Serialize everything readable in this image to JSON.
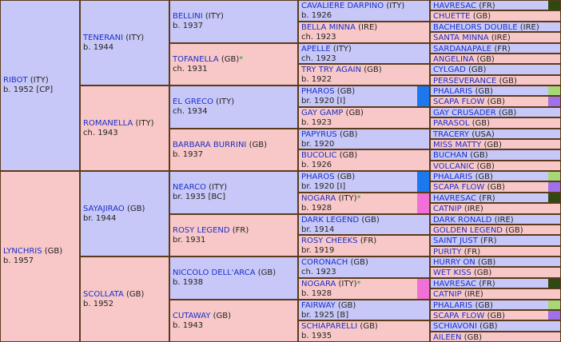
{
  "colors": {
    "male_bg": "#c8c8f8",
    "female_bg": "#f8c8c8",
    "border": "#5a3a1a",
    "link": "#1a2fc8",
    "star": "#2a9a2a",
    "tag_darkgreen": "#2e4a12",
    "tag_lightgreen": "#a6d878",
    "tag_purple": "#a070e8",
    "tag_blue": "#1c78ee",
    "tag_pink": "#f070d8"
  },
  "pedigree": {
    "g1": [
      {
        "name": "RIBOT",
        "country": "(ITY)",
        "info": "b. 1952 [CP]"
      },
      {
        "name": "LYNCHRIS",
        "country": "(GB)",
        "info": "b. 1957"
      }
    ],
    "g2": [
      {
        "name": "TENERANI",
        "country": "(ITY)",
        "info": "b. 1944"
      },
      {
        "name": "ROMANELLA",
        "country": "(ITY)",
        "info": "ch. 1943"
      },
      {
        "name": "SAYAJIRAO",
        "country": "(GB)",
        "info": "br. 1944"
      },
      {
        "name": "SCOLLATA",
        "country": "(GB)",
        "info": "b. 1952"
      }
    ],
    "g3": [
      {
        "name": "BELLINI",
        "country": "(ITY)",
        "info": "b. 1937"
      },
      {
        "name": "TOFANELLA",
        "country": "(GB)",
        "star": "*",
        "info": "ch. 1931"
      },
      {
        "name": "EL GRECO",
        "country": "(ITY)",
        "info": "ch. 1934"
      },
      {
        "name": "BARBARA BURRINI",
        "country": "(GB)",
        "info": "b. 1937"
      },
      {
        "name": "NEARCO",
        "country": "(ITY)",
        "info": "br. 1935 [BC]"
      },
      {
        "name": "ROSY LEGEND",
        "country": "(FR)",
        "info": "br. 1931"
      },
      {
        "name": "NICCOLO DELL'ARCA",
        "country": "(GB)",
        "info": "b. 1938"
      },
      {
        "name": "CUTAWAY",
        "country": "(GB)",
        "info": "b. 1943"
      }
    ],
    "g4": [
      {
        "name": "CAVALIERE DARPINO",
        "country": "(ITY)",
        "info": "b. 1926"
      },
      {
        "name": "BELLA MINNA",
        "country": "(IRE)",
        "info": "ch. 1923"
      },
      {
        "name": "APELLE",
        "country": "(ITY)",
        "info": "ch. 1923"
      },
      {
        "name": "TRY TRY AGAIN",
        "country": "(GB)",
        "info": "b. 1922"
      },
      {
        "name": "PHAROS",
        "country": "(GB)",
        "info": "br. 1920 [I]"
      },
      {
        "name": "GAY GAMP",
        "country": "(GB)",
        "info": "b. 1923"
      },
      {
        "name": "PAPYRUS",
        "country": "(GB)",
        "info": "br. 1920"
      },
      {
        "name": "BUCOLIC",
        "country": "(GB)",
        "info": "b. 1926"
      },
      {
        "name": "PHAROS",
        "country": "(GB)",
        "info": "br. 1920 [I]"
      },
      {
        "name": "NOGARA",
        "country": "(ITY)",
        "star": "*",
        "info": "b. 1928"
      },
      {
        "name": "DARK LEGEND",
        "country": "(GB)",
        "info": "br. 1914"
      },
      {
        "name": "ROSY CHEEKS",
        "country": "(FR)",
        "info": "br. 1919"
      },
      {
        "name": "CORONACH",
        "country": "(GB)",
        "info": "ch. 1923"
      },
      {
        "name": "NOGARA",
        "country": "(ITY)",
        "star": "*",
        "info": "b. 1928"
      },
      {
        "name": "FAIRWAY",
        "country": "(GB)",
        "info": "br. 1925 [B]"
      },
      {
        "name": "SCHIAPARELLI",
        "country": "(GB)",
        "info": "b. 1935"
      }
    ],
    "g5": [
      {
        "name": "HAVRESAC",
        "country": "(FR)"
      },
      {
        "name": "CHUETTE",
        "country": "(GB)"
      },
      {
        "name": "BACHELORS DOUBLE",
        "country": "(IRE)"
      },
      {
        "name": "SANTA MINNA",
        "country": "(IRE)"
      },
      {
        "name": "SARDANAPALE",
        "country": "(FR)"
      },
      {
        "name": "ANGELINA",
        "country": "(GB)"
      },
      {
        "name": "CYLGAD",
        "country": "(GB)"
      },
      {
        "name": "PERSEVERANCE",
        "country": "(GB)"
      },
      {
        "name": "PHALARIS",
        "country": "(GB)"
      },
      {
        "name": "SCAPA FLOW",
        "country": "(GB)"
      },
      {
        "name": "GAY CRUSADER",
        "country": "(GB)"
      },
      {
        "name": "PARASOL",
        "country": "(GB)"
      },
      {
        "name": "TRACERY",
        "country": "(USA)"
      },
      {
        "name": "MISS MATTY",
        "country": "(GB)"
      },
      {
        "name": "BUCHAN",
        "country": "(GB)"
      },
      {
        "name": "VOLCANIC",
        "country": "(GB)"
      },
      {
        "name": "PHALARIS",
        "country": "(GB)"
      },
      {
        "name": "SCAPA FLOW",
        "country": "(GB)"
      },
      {
        "name": "HAVRESAC",
        "country": "(FR)"
      },
      {
        "name": "CATNIP",
        "country": "(IRE)"
      },
      {
        "name": "DARK RONALD",
        "country": "(IRE)"
      },
      {
        "name": "GOLDEN LEGEND",
        "country": "(GB)"
      },
      {
        "name": "SAINT JUST",
        "country": "(FR)"
      },
      {
        "name": "PURITY",
        "country": "(FR)"
      },
      {
        "name": "HURRY ON",
        "country": "(GB)"
      },
      {
        "name": "WET KISS",
        "country": "(GB)"
      },
      {
        "name": "HAVRESAC",
        "country": "(FR)"
      },
      {
        "name": "CATNIP",
        "country": "(IRE)"
      },
      {
        "name": "PHALARIS",
        "country": "(GB)"
      },
      {
        "name": "SCAPA FLOW",
        "country": "(GB)"
      },
      {
        "name": "SCHIAVONI",
        "country": "(GB)"
      },
      {
        "name": "AILEEN",
        "country": "(GB)"
      }
    ],
    "g4_tags": [
      null,
      null,
      null,
      null,
      "tag_blue",
      null,
      null,
      null,
      "tag_blue",
      "tag_pink",
      null,
      null,
      null,
      "tag_pink",
      null,
      null
    ],
    "g5_tags": [
      "tag_darkgreen",
      null,
      null,
      null,
      null,
      null,
      null,
      null,
      "tag_lightgreen",
      "tag_purple",
      null,
      null,
      null,
      null,
      null,
      null,
      "tag_lightgreen",
      "tag_purple",
      "tag_darkgreen",
      null,
      null,
      null,
      null,
      null,
      null,
      null,
      "tag_darkgreen",
      null,
      "tag_lightgreen",
      "tag_purple",
      null,
      null
    ]
  }
}
